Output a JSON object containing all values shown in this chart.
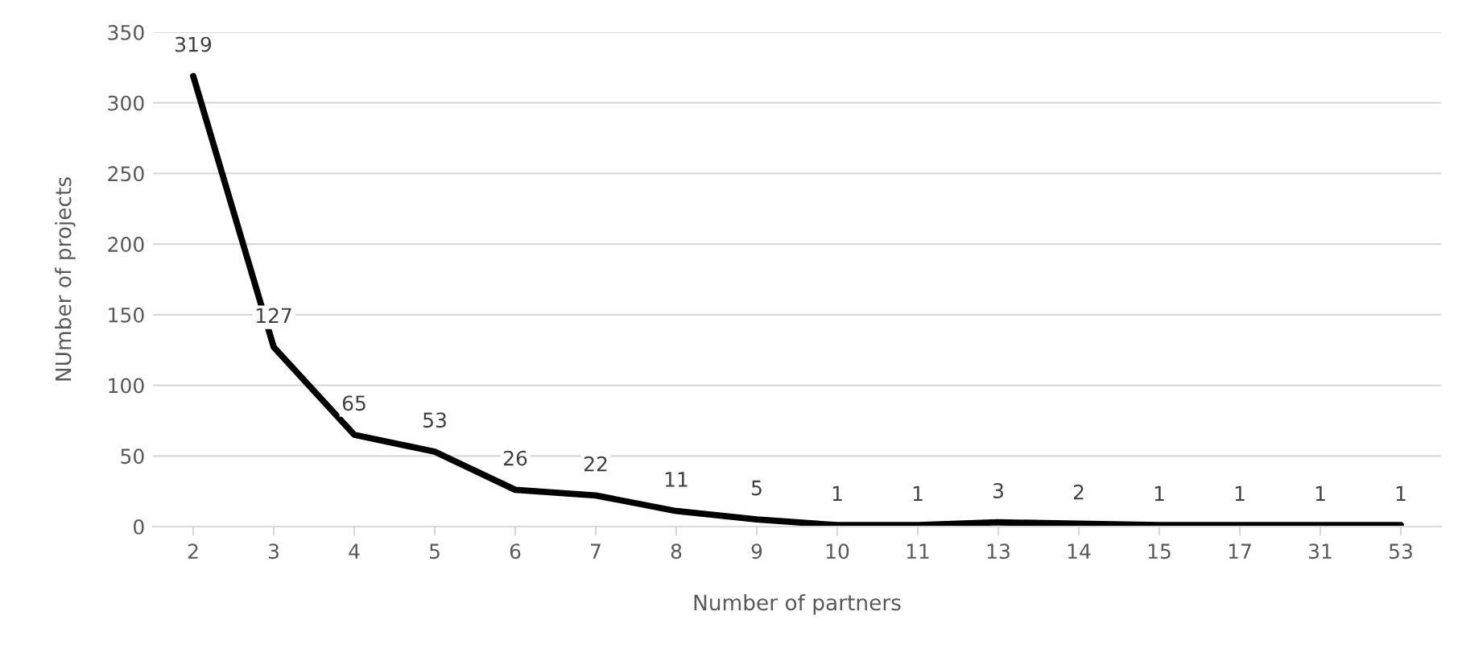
{
  "chart_data": {
    "type": "line",
    "xlabel": "Number of partners",
    "ylabel": "NUmber of projects",
    "categories": [
      "2",
      "3",
      "4",
      "5",
      "6",
      "7",
      "8",
      "9",
      "10",
      "11",
      "13",
      "14",
      "15",
      "17",
      "31",
      "53"
    ],
    "series": [
      {
        "color": "#000000",
        "values": [
          319,
          127,
          65,
          53,
          26,
          22,
          11,
          5,
          1,
          1,
          3,
          2,
          1,
          1,
          1,
          1
        ]
      }
    ],
    "ylim": [
      0,
      350
    ],
    "yticks": [
      0,
      50,
      100,
      150,
      200,
      250,
      300,
      350
    ],
    "grid": "y",
    "data_labels": true,
    "marker": "none",
    "line_style": "solid"
  }
}
